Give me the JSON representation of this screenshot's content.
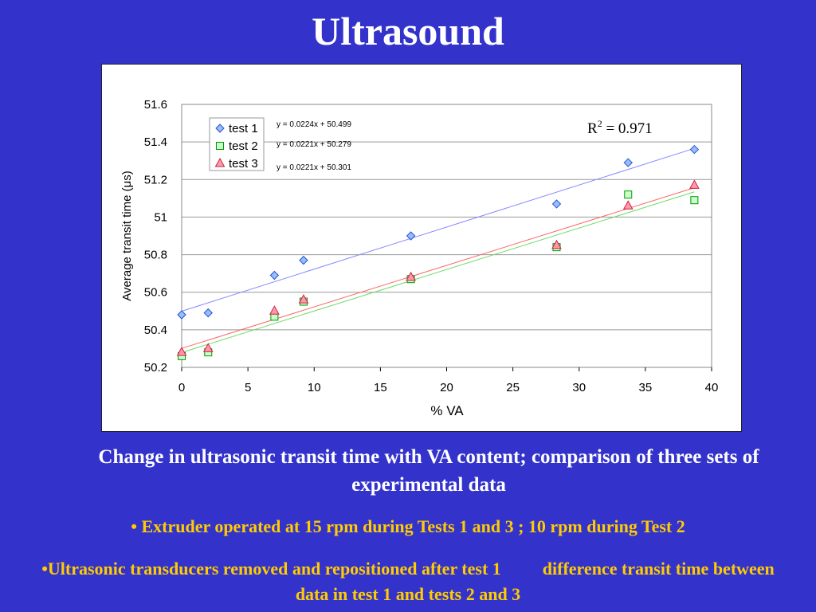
{
  "slide": {
    "title": "Ultrasound",
    "caption": "Change in ultrasonic transit time with VA content; comparison of three sets of experimental data",
    "bullet1": "• Extruder operated at 15 rpm during Tests 1 and 3 ; 10 rpm during Test 2",
    "bullet2_a": "•Ultrasonic transducers removed and repositioned after test 1",
    "bullet2_b": "difference transit time between data in test 1 and tests 2 and 3"
  },
  "chart_data": {
    "type": "scatter",
    "title": "",
    "xlabel": "% VA",
    "ylabel": "Average transit time (μs)",
    "xlim": [
      0,
      40
    ],
    "ylim": [
      50.2,
      51.6
    ],
    "xticks": [
      0,
      5,
      10,
      15,
      20,
      25,
      30,
      35,
      40
    ],
    "yticks": [
      50.2,
      50.4,
      50.6,
      50.8,
      51,
      51.2,
      51.4,
      51.6
    ],
    "ytick_labels": [
      "50.2",
      "50.4",
      "50.6",
      "50.8",
      "51",
      "51.2",
      "51.4",
      "51.6"
    ],
    "grid": "horizontal",
    "legend_position": "top-left",
    "annotation": "R² = 0.971",
    "series": [
      {
        "name": "test 1",
        "marker": "diamond",
        "color": "#2255cc",
        "fill": "#99bbff",
        "line_color": "#8888ff",
        "equation": "y = 0.0224x + 50.499",
        "slope": 0.0224,
        "intercept": 50.499,
        "x": [
          0,
          2,
          7,
          9.2,
          17.3,
          28.3,
          33.7,
          38.7
        ],
        "y": [
          50.48,
          50.49,
          50.69,
          50.77,
          50.9,
          51.07,
          51.29,
          51.36
        ]
      },
      {
        "name": "test 2",
        "marker": "square",
        "color": "#009900",
        "fill": "#ccffcc",
        "line_color": "#66dd66",
        "equation": "y = 0.0221x + 50.279",
        "slope": 0.0221,
        "intercept": 50.279,
        "x": [
          0,
          2,
          7,
          9.2,
          17.3,
          28.3,
          33.7,
          38.7
        ],
        "y": [
          50.26,
          50.28,
          50.47,
          50.55,
          50.67,
          50.84,
          51.12,
          51.09
        ]
      },
      {
        "name": "test 3",
        "marker": "triangle",
        "color": "#cc2244",
        "fill": "#ff99aa",
        "line_color": "#ff6666",
        "equation": "y = 0.0221x + 50.301",
        "slope": 0.0221,
        "intercept": 50.301,
        "x": [
          0,
          2,
          7,
          9.2,
          17.3,
          28.3,
          33.7,
          38.7
        ],
        "y": [
          50.28,
          50.3,
          50.5,
          50.56,
          50.68,
          50.85,
          51.06,
          51.17
        ]
      }
    ]
  }
}
